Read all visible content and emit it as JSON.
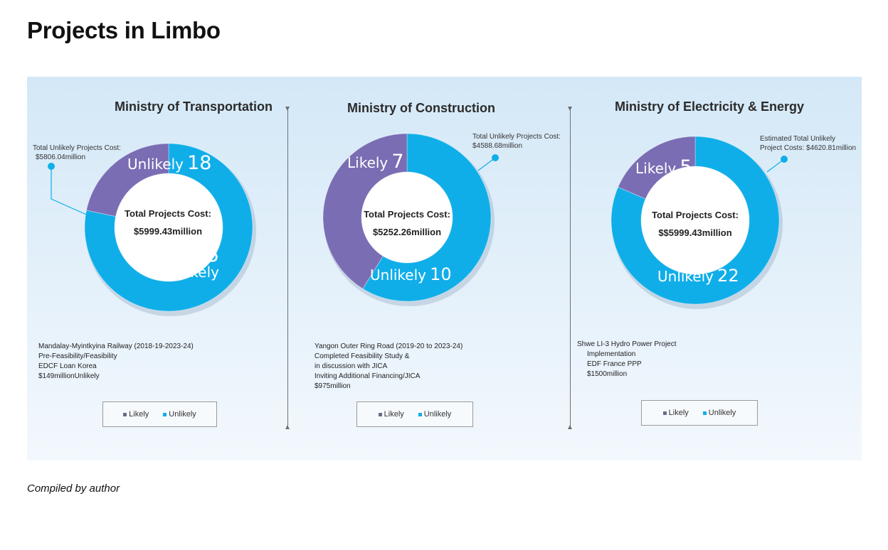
{
  "title": "Projects in Limbo",
  "caption": "Compiled by author",
  "colors": {
    "likely": "#7a6db3",
    "unlikely": "#10aee9"
  },
  "legend": {
    "likely": "Likely",
    "unlikely": "Unlikely"
  },
  "chart_data": [
    {
      "type": "pie",
      "title": "Ministry of Transportation",
      "categories": [
        "Unlikely",
        "Likely"
      ],
      "values": [
        18,
        5
      ],
      "center_title": "Total Projects Cost:",
      "center_value": "$5999.43million",
      "callout": [
        "Total Unlikely Projects Cost:",
        "$5806.04million"
      ],
      "details": [
        "Mandalay-Myintkyina Railway (2018-19-2023-24)",
        "Pre-Feasibility/Feasibility",
        "EDCF Loan Korea",
        "$149millionUnlikely"
      ]
    },
    {
      "type": "pie",
      "title": "Ministry of  Construction",
      "categories": [
        "Unlikely",
        "Likely"
      ],
      "values": [
        10,
        7
      ],
      "center_title": "Total Projects Cost:",
      "center_value": "$5252.26million",
      "callout": [
        "Total Unlikely Projects Cost:",
        "$4588.68million"
      ],
      "details": [
        "Yangon Outer Ring Road (2019-20 to 2023-24)",
        "Completed Feasibility Study &",
        "in discussion with JICA",
        "Inviting Additional Financing/JICA",
        "$975million"
      ]
    },
    {
      "type": "pie",
      "title": "Ministry of Electricity & Energy",
      "categories": [
        "Unlikely",
        "Likely"
      ],
      "values": [
        22,
        5
      ],
      "center_title": "Total Projects Cost:",
      "center_value": "$$5999.43million",
      "callout": [
        "Estimated Total Unlikely",
        "Project Costs: $4620.81million"
      ],
      "details": [
        "Shwe LI-3 Hydro Power Project",
        "Implementation",
        "EDF France PPP",
        "$1500million"
      ]
    }
  ]
}
